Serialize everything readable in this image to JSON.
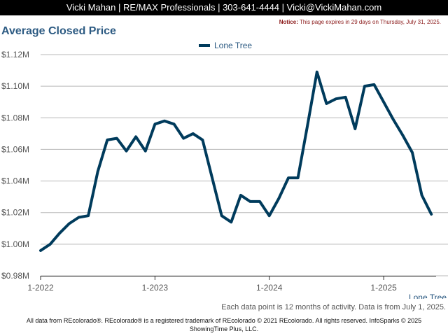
{
  "header": {
    "contact": "Vicki Mahan | RE/MAX Professionals | 303-641-4444 | Vicki@VickiMahan.com"
  },
  "notice": {
    "label": "Notice:",
    "text": " This page expires in 29 days on Thursday, July 31, 2025."
  },
  "chart_title": "Average Closed Price",
  "chart_data": {
    "type": "line",
    "title": "Average Closed Price",
    "xlabel": "",
    "ylabel": "",
    "x_tick_labels": [
      "1-2022",
      "1-2023",
      "1-2024",
      "1-2025"
    ],
    "y_tick_labels": [
      "$0.98M",
      "$1.00M",
      "$1.02M",
      "$1.04M",
      "$1.06M",
      "$1.08M",
      "$1.10M",
      "$1.12M"
    ],
    "ylim": [
      0.98,
      1.12
    ],
    "y_unit": "$M",
    "grid": true,
    "legend_position": "top-center",
    "x": [
      "1-2022",
      "2-2022",
      "3-2022",
      "4-2022",
      "5-2022",
      "6-2022",
      "7-2022",
      "8-2022",
      "9-2022",
      "10-2022",
      "11-2022",
      "12-2022",
      "1-2023",
      "2-2023",
      "3-2023",
      "4-2023",
      "5-2023",
      "6-2023",
      "7-2023",
      "8-2023",
      "9-2023",
      "10-2023",
      "11-2023",
      "12-2023",
      "1-2024",
      "2-2024",
      "3-2024",
      "4-2024",
      "5-2024",
      "6-2024",
      "7-2024",
      "8-2024",
      "9-2024",
      "10-2024",
      "11-2024",
      "12-2024",
      "1-2025",
      "2-2025",
      "3-2025",
      "4-2025",
      "5-2025",
      "6-2025"
    ],
    "series": [
      {
        "name": "Lone Tree",
        "color": "#003b5c",
        "values": [
          0.996,
          1.0,
          1.007,
          1.013,
          1.017,
          1.018,
          1.046,
          1.066,
          1.067,
          1.059,
          1.068,
          1.059,
          1.076,
          1.078,
          1.076,
          1.067,
          1.07,
          1.066,
          1.042,
          1.018,
          1.014,
          1.031,
          1.027,
          1.027,
          1.018,
          1.029,
          1.042,
          1.042,
          1.075,
          1.109,
          1.089,
          1.092,
          1.093,
          1.073,
          1.1,
          1.101,
          1.09,
          1.079,
          1.069,
          1.058,
          1.031,
          1.019
        ]
      }
    ]
  },
  "x_corner_label": "Lone Tree",
  "footnote": "Each data point is 12 months of activity. Data is from July 1, 2025.",
  "footer": {
    "line1": "All data from REcolorado®. REcolorado® is a registered trademark of REcolorado © 2021 REcolorado. All rights reserved. InfoSparks © 2025",
    "line2": "ShowingTime Plus, LLC."
  }
}
